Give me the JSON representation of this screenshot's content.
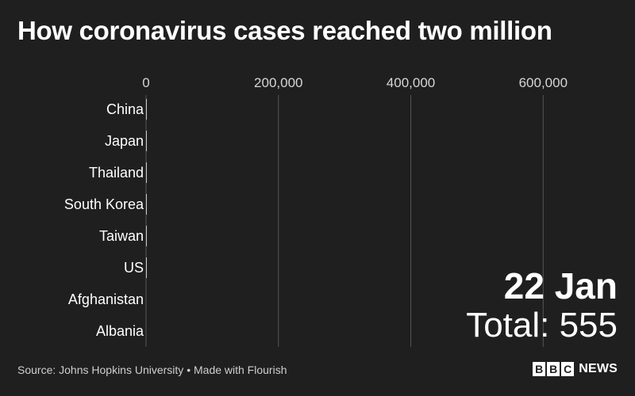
{
  "title": "How coronavirus cases reached two million",
  "date": "22 Jan",
  "total": "Total: 555",
  "source": "Source: Johns Hopkins University • Made with Flourish",
  "logo": {
    "letters": [
      "B",
      "B",
      "C"
    ],
    "word": "NEWS"
  },
  "colors": {
    "background": "#1f1f1f",
    "text": "#ffffff",
    "grid": "#555555",
    "bar": "#c8c8c8"
  },
  "chart_data": {
    "type": "bar",
    "orientation": "horizontal",
    "title": "How coronavirus cases reached two million",
    "categories": [
      "China",
      "Japan",
      "Thailand",
      "South Korea",
      "Taiwan",
      "US",
      "Afghanistan",
      "Albania"
    ],
    "values": [
      548,
      2,
      2,
      1,
      1,
      1,
      0,
      0
    ],
    "xlim": [
      0,
      650000
    ],
    "x_ticks": [
      0,
      200000,
      400000,
      600000
    ],
    "x_tick_labels": [
      "0",
      "200,000",
      "400,000",
      "600,000"
    ],
    "xlabel": "",
    "ylabel": "",
    "grid": true,
    "axis_position": "top"
  }
}
